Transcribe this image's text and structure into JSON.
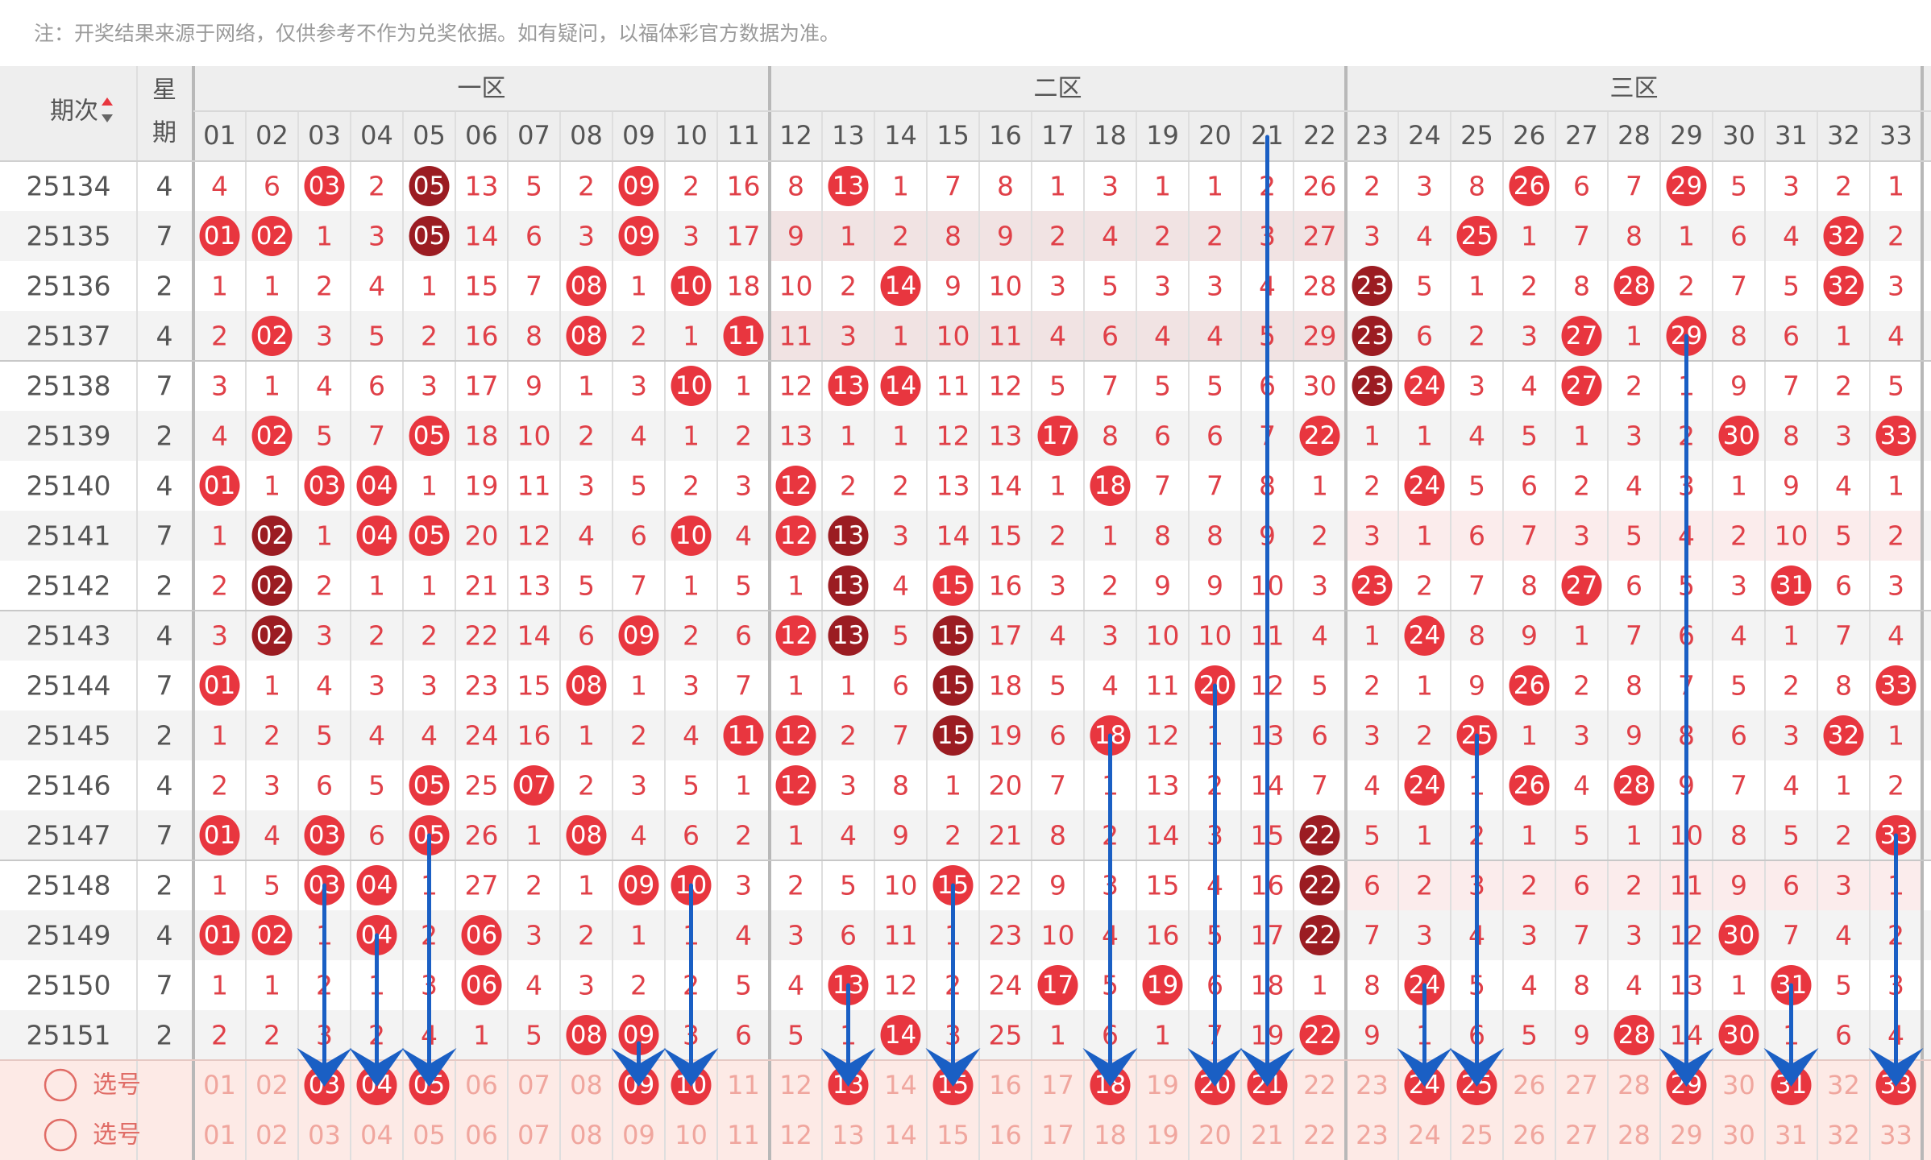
{
  "note": "注：开奖结果来源于网络，仅供参考不作为兑奖依据。如有疑问，以福体彩官方数据为准。",
  "header": {
    "period_label": "期次",
    "weekday_label_1": "星",
    "weekday_label_2": "期",
    "sort_icon": "sort-up-down-icon",
    "zones": [
      "一区",
      "二区",
      "三区"
    ],
    "numbers": [
      "01",
      "02",
      "03",
      "04",
      "05",
      "06",
      "07",
      "08",
      "09",
      "10",
      "11",
      "12",
      "13",
      "14",
      "15",
      "16",
      "17",
      "18",
      "19",
      "20",
      "21",
      "22",
      "23",
      "24",
      "25",
      "26",
      "27",
      "28",
      "29",
      "30",
      "31",
      "32",
      "33"
    ]
  },
  "pick_rows": [
    {
      "label": "选号",
      "selected": [
        3,
        4,
        5,
        9,
        10,
        13,
        15,
        18,
        20,
        21,
        24,
        25,
        29,
        31,
        33
      ]
    },
    {
      "label": "选号",
      "selected": []
    }
  ],
  "colors": {
    "ball_red": "#e8363f",
    "ball_dark": "#9b1c22",
    "miss_text": "#e04048",
    "arrow": "#1a5fc4",
    "pick_bg": "#fdeae6",
    "stripe": "#f3f3f3",
    "highlight_row": "#f1e3e3"
  },
  "chart_data": {
    "type": "table",
    "columns": [
      "01",
      "02",
      "03",
      "04",
      "05",
      "06",
      "07",
      "08",
      "09",
      "10",
      "11",
      "12",
      "13",
      "14",
      "15",
      "16",
      "17",
      "18",
      "19",
      "20",
      "21",
      "22",
      "23",
      "24",
      "25",
      "26",
      "27",
      "28",
      "29",
      "30",
      "31",
      "32",
      "33"
    ],
    "rows": [
      {
        "period": "25134",
        "weekday": "4",
        "values": [
          4,
          6,
          0,
          2,
          0,
          13,
          5,
          2,
          0,
          2,
          16,
          8,
          0,
          1,
          7,
          8,
          1,
          3,
          1,
          1,
          2,
          26,
          2,
          3,
          8,
          0,
          6,
          7,
          0,
          5,
          3,
          2,
          1
        ],
        "dark": [
          5
        ]
      },
      {
        "period": "25135",
        "weekday": "7",
        "values": [
          0,
          0,
          1,
          3,
          0,
          14,
          6,
          3,
          0,
          3,
          17,
          9,
          1,
          2,
          8,
          9,
          2,
          4,
          2,
          2,
          3,
          27,
          3,
          4,
          0,
          1,
          7,
          8,
          1,
          6,
          4,
          0,
          2
        ],
        "dark": [
          5
        ]
      },
      {
        "period": "25136",
        "weekday": "2",
        "values": [
          1,
          1,
          2,
          4,
          1,
          15,
          7,
          0,
          1,
          0,
          18,
          10,
          2,
          0,
          9,
          10,
          3,
          5,
          3,
          3,
          4,
          28,
          0,
          5,
          1,
          2,
          8,
          0,
          2,
          7,
          5,
          0,
          3
        ],
        "dark": [
          23
        ]
      },
      {
        "period": "25137",
        "weekday": "4",
        "values": [
          2,
          0,
          3,
          5,
          2,
          16,
          8,
          0,
          2,
          1,
          0,
          11,
          3,
          1,
          10,
          11,
          4,
          6,
          4,
          4,
          5,
          29,
          0,
          6,
          2,
          3,
          0,
          1,
          0,
          8,
          6,
          1,
          4
        ],
        "dark": [
          23
        ]
      },
      {
        "period": "25138",
        "weekday": "7",
        "values": [
          3,
          1,
          4,
          6,
          3,
          17,
          9,
          1,
          3,
          0,
          1,
          12,
          0,
          0,
          11,
          12,
          5,
          7,
          5,
          5,
          6,
          30,
          0,
          0,
          3,
          4,
          0,
          2,
          1,
          9,
          7,
          2,
          5
        ],
        "dark": [
          23
        ]
      },
      {
        "period": "25139",
        "weekday": "2",
        "values": [
          4,
          0,
          5,
          7,
          0,
          18,
          10,
          2,
          4,
          1,
          2,
          13,
          1,
          1,
          12,
          13,
          0,
          8,
          6,
          6,
          7,
          0,
          1,
          1,
          4,
          5,
          1,
          3,
          2,
          0,
          8,
          3,
          0
        ],
        "dark": []
      },
      {
        "period": "25140",
        "weekday": "4",
        "values": [
          0,
          1,
          0,
          0,
          1,
          19,
          11,
          3,
          5,
          2,
          3,
          0,
          2,
          2,
          13,
          14,
          1,
          0,
          7,
          7,
          8,
          1,
          2,
          0,
          5,
          6,
          2,
          4,
          3,
          1,
          9,
          4,
          1
        ],
        "dark": []
      },
      {
        "period": "25141",
        "weekday": "7",
        "values": [
          1,
          0,
          1,
          0,
          0,
          20,
          12,
          4,
          6,
          0,
          4,
          0,
          0,
          3,
          14,
          15,
          2,
          1,
          8,
          8,
          9,
          2,
          3,
          1,
          6,
          7,
          3,
          5,
          4,
          2,
          10,
          5,
          2
        ],
        "dark": [
          2,
          13
        ]
      },
      {
        "period": "25142",
        "weekday": "2",
        "values": [
          2,
          0,
          2,
          1,
          1,
          21,
          13,
          5,
          7,
          1,
          5,
          1,
          0,
          4,
          0,
          16,
          3,
          2,
          9,
          9,
          10,
          3,
          0,
          2,
          7,
          8,
          0,
          6,
          5,
          3,
          0,
          6,
          3
        ],
        "dark": [
          2,
          13
        ]
      },
      {
        "period": "25143",
        "weekday": "4",
        "values": [
          3,
          0,
          3,
          2,
          2,
          22,
          14,
          6,
          0,
          2,
          6,
          0,
          0,
          5,
          0,
          17,
          4,
          3,
          10,
          10,
          11,
          4,
          1,
          0,
          8,
          9,
          1,
          7,
          6,
          4,
          1,
          7,
          4
        ],
        "dark": [
          2,
          13,
          15
        ]
      },
      {
        "period": "25144",
        "weekday": "7",
        "values": [
          0,
          1,
          4,
          3,
          3,
          23,
          15,
          0,
          1,
          3,
          7,
          1,
          1,
          6,
          0,
          18,
          5,
          4,
          11,
          0,
          12,
          5,
          2,
          1,
          9,
          0,
          2,
          8,
          7,
          5,
          2,
          8,
          0
        ],
        "dark": [
          15
        ]
      },
      {
        "period": "25145",
        "weekday": "2",
        "values": [
          1,
          2,
          5,
          4,
          4,
          24,
          16,
          1,
          2,
          4,
          0,
          0,
          2,
          7,
          0,
          19,
          6,
          0,
          12,
          1,
          13,
          6,
          3,
          2,
          0,
          1,
          3,
          9,
          8,
          6,
          3,
          0,
          1
        ],
        "dark": [
          15
        ]
      },
      {
        "period": "25146",
        "weekday": "4",
        "values": [
          2,
          3,
          6,
          5,
          0,
          25,
          0,
          2,
          3,
          5,
          1,
          0,
          3,
          8,
          1,
          20,
          7,
          1,
          13,
          2,
          14,
          7,
          4,
          0,
          1,
          0,
          4,
          0,
          9,
          7,
          4,
          1,
          2
        ],
        "dark": []
      },
      {
        "period": "25147",
        "weekday": "7",
        "values": [
          0,
          4,
          0,
          6,
          0,
          26,
          1,
          0,
          4,
          6,
          2,
          1,
          4,
          9,
          2,
          21,
          8,
          2,
          14,
          3,
          15,
          0,
          5,
          1,
          2,
          1,
          5,
          1,
          10,
          8,
          5,
          2,
          0
        ],
        "dark": [
          22
        ]
      },
      {
        "period": "25148",
        "weekday": "2",
        "values": [
          1,
          5,
          0,
          0,
          1,
          27,
          2,
          1,
          0,
          0,
          3,
          2,
          5,
          10,
          0,
          22,
          9,
          3,
          15,
          4,
          16,
          0,
          6,
          2,
          3,
          2,
          6,
          2,
          11,
          9,
          6,
          3,
          1
        ],
        "dark": [
          22
        ]
      },
      {
        "period": "25149",
        "weekday": "4",
        "values": [
          0,
          0,
          1,
          0,
          2,
          0,
          3,
          2,
          1,
          1,
          4,
          3,
          6,
          11,
          1,
          23,
          10,
          4,
          16,
          5,
          17,
          0,
          7,
          3,
          4,
          3,
          7,
          3,
          12,
          0,
          7,
          4,
          2
        ],
        "dark": [
          22
        ]
      },
      {
        "period": "25150",
        "weekday": "7",
        "values": [
          1,
          1,
          2,
          1,
          3,
          0,
          4,
          3,
          2,
          2,
          5,
          4,
          0,
          12,
          2,
          24,
          0,
          5,
          0,
          6,
          18,
          1,
          8,
          0,
          5,
          4,
          8,
          4,
          13,
          1,
          0,
          5,
          3
        ],
        "dark": []
      },
      {
        "period": "25151",
        "weekday": "2",
        "values": [
          2,
          2,
          3,
          2,
          4,
          1,
          5,
          0,
          0,
          3,
          6,
          5,
          1,
          0,
          3,
          25,
          1,
          6,
          1,
          7,
          19,
          0,
          9,
          1,
          6,
          5,
          9,
          0,
          14,
          0,
          1,
          6,
          4
        ],
        "dark": []
      }
    ],
    "arrows_to": [
      3,
      4,
      5,
      9,
      10,
      13,
      15,
      18,
      20,
      21,
      24,
      25,
      29,
      31,
      33
    ]
  }
}
